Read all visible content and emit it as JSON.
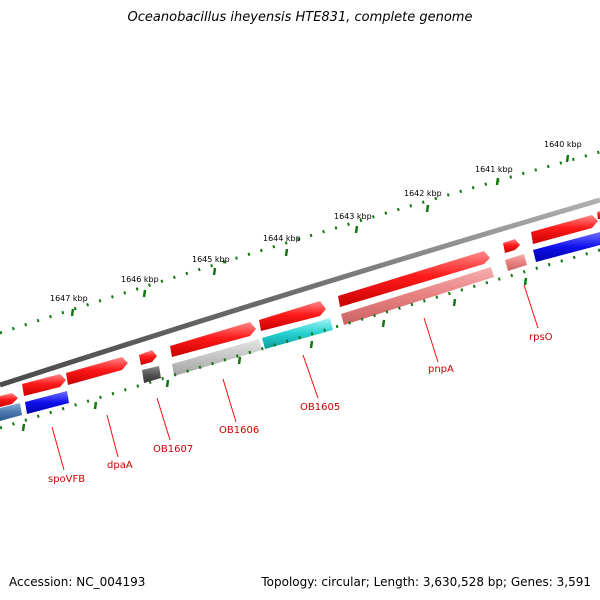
{
  "title": "Oceanobacillus iheyensis HTE831, complete genome",
  "footer": {
    "accession": "Accession: NC_004193",
    "summary": "Topology: circular; Length: 3,630,528 bp; Genes: 3,591"
  },
  "colors": {
    "backbone": "#7a7a7a",
    "tick": "#117711",
    "forward_gene": "#ee1111",
    "label": "#cc0000"
  },
  "scale_labels": [
    "1640 kbp",
    "1641 kbp",
    "1642 kbp",
    "1643 kbp",
    "1644 kbp",
    "1645 kbp",
    "1646 kbp",
    "1647 kbp"
  ],
  "gene_labels": [
    "rpsO",
    "pnpA",
    "OB1605",
    "OB1606",
    "OB1607",
    "dpaA",
    "spoVFB"
  ]
}
